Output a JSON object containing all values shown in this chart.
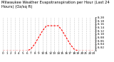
{
  "title": "Milwaukee Weather Evapotranspiration per Hour (Last 24 Hours) (Oz/sq ft)",
  "hours": [
    0,
    1,
    2,
    3,
    4,
    5,
    6,
    7,
    8,
    9,
    10,
    11,
    12,
    13,
    14,
    15,
    16,
    17,
    18,
    19,
    20,
    21,
    22,
    23
  ],
  "values": [
    0,
    0,
    0,
    0,
    0,
    0,
    0,
    0.01,
    0.04,
    0.08,
    0.12,
    0.15,
    0.15,
    0.15,
    0.15,
    0.12,
    0.08,
    0.04,
    0.01,
    0,
    0,
    0,
    0,
    0
  ],
  "line_color": "#ff0000",
  "grid_color": "#999999",
  "bg_color": "#ffffff",
  "ylim": [
    0,
    0.2
  ],
  "ytick_values": [
    0.0,
    0.02,
    0.04,
    0.06,
    0.08,
    0.1,
    0.12,
    0.14,
    0.16,
    0.18,
    0.2
  ],
  "ytick_labels": [
    "",
    "0.02",
    "0.04",
    "0.06",
    "0.08",
    "0.10",
    "0.12",
    "0.14",
    "0.16",
    "0.18",
    "0.20"
  ],
  "title_fontsize": 3.8,
  "tick_fontsize": 3.0,
  "line_width": 0.8
}
